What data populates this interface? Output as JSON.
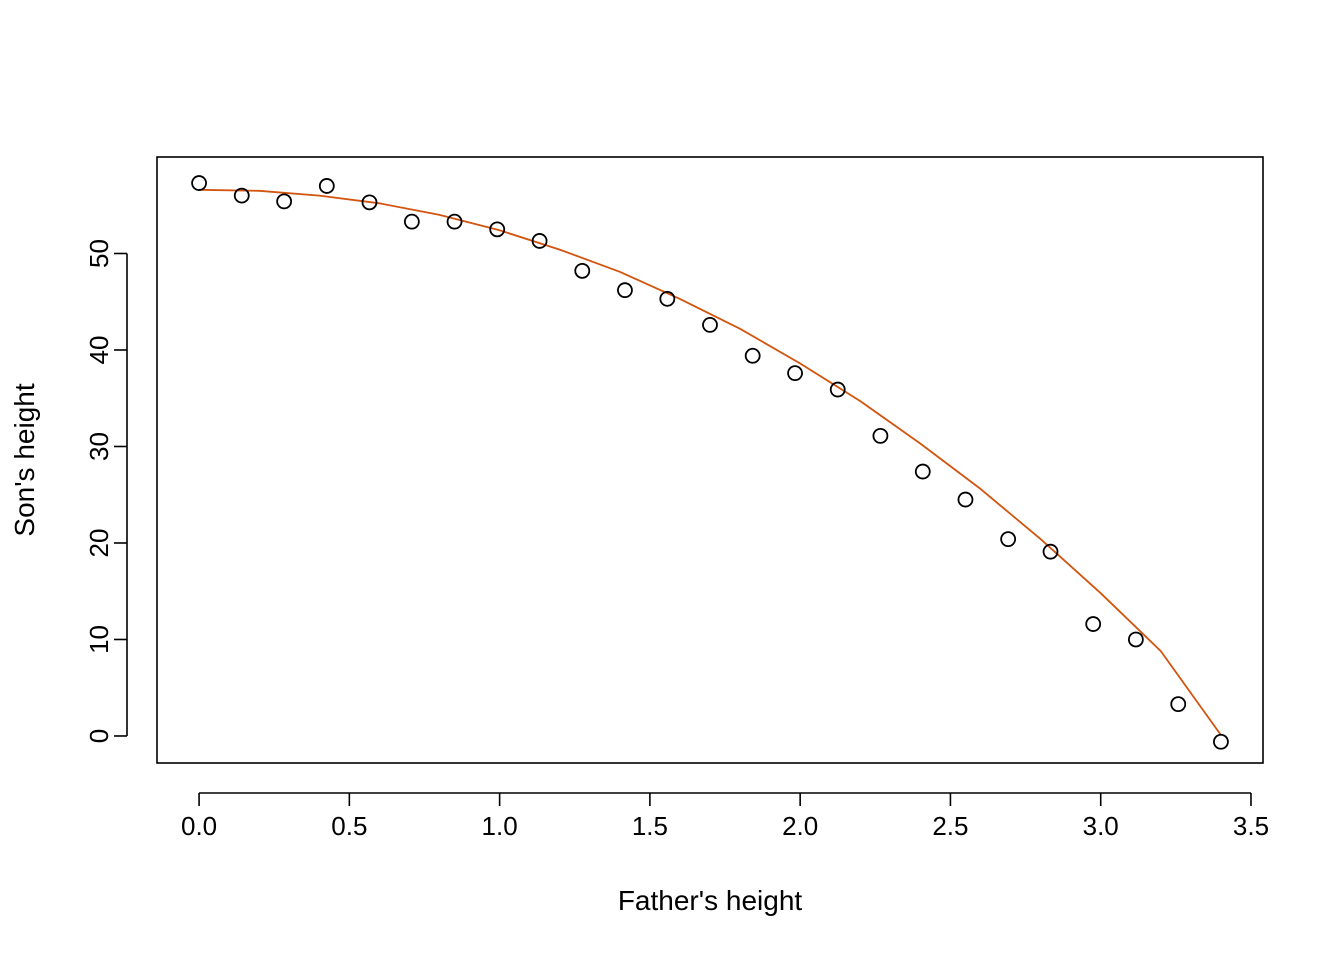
{
  "chart_data": {
    "type": "scatter",
    "title": "",
    "xlabel": "Father's height",
    "ylabel": "Son's height",
    "xlim": [
      -0.14,
      3.54
    ],
    "ylim": [
      -2.8,
      60.0
    ],
    "x_ticks": [
      0.0,
      0.5,
      1.0,
      1.5,
      2.0,
      2.5,
      3.0,
      3.5
    ],
    "x_tick_labels": [
      "0.0",
      "0.5",
      "1.0",
      "1.5",
      "2.0",
      "2.5",
      "3.0",
      "3.5"
    ],
    "y_ticks": [
      0,
      10,
      20,
      30,
      40,
      50
    ],
    "y_tick_labels": [
      "0",
      "10",
      "20",
      "30",
      "40",
      "50"
    ],
    "grid": false,
    "series": [
      {
        "type": "points",
        "marker": "open-circle",
        "color": "#000000",
        "x": [
          0.0,
          0.142,
          0.283,
          0.425,
          0.567,
          0.708,
          0.85,
          0.992,
          1.133,
          1.275,
          1.417,
          1.558,
          1.7,
          1.842,
          1.983,
          2.125,
          2.267,
          2.408,
          2.55,
          2.692,
          2.833,
          2.975,
          3.117,
          3.258,
          3.4
        ],
        "y": [
          57.3,
          56.0,
          55.4,
          57.0,
          55.3,
          53.3,
          53.3,
          52.5,
          51.3,
          48.2,
          46.2,
          45.3,
          42.6,
          39.4,
          37.6,
          35.9,
          31.1,
          27.4,
          24.5,
          20.4,
          19.1,
          11.6,
          10.0,
          3.3,
          -0.6
        ]
      },
      {
        "type": "line",
        "color": "#D2540E",
        "x": [
          0.0,
          0.2,
          0.4,
          0.6,
          0.8,
          1.0,
          1.2,
          1.4,
          1.6,
          1.8,
          2.0,
          2.2,
          2.4,
          2.6,
          2.8,
          3.0,
          3.2,
          3.4
        ],
        "y": [
          56.6,
          56.5,
          56.0,
          55.2,
          54.0,
          52.4,
          50.4,
          48.1,
          45.3,
          42.2,
          38.6,
          34.7,
          30.3,
          25.6,
          20.4,
          14.8,
          8.8,
          0.1
        ]
      }
    ]
  }
}
